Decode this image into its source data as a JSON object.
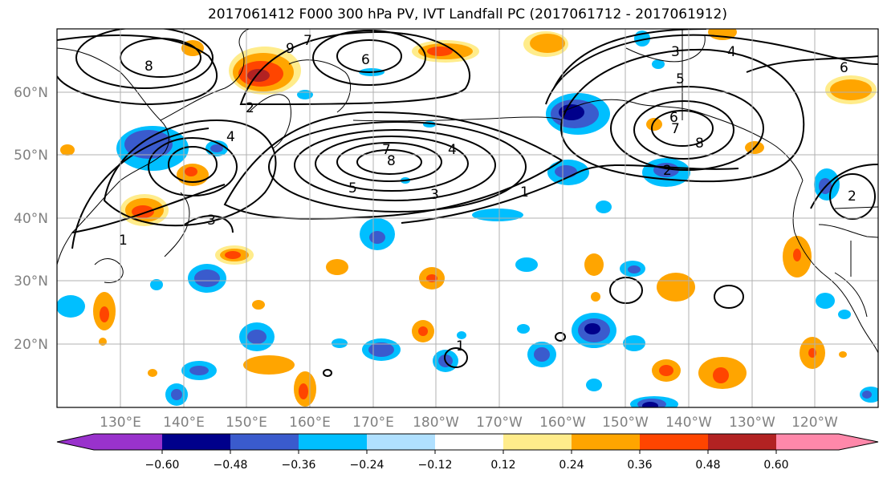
{
  "title": "2017061412 F000 300 hPa PV, IVT Landfall PC (2017061712 - 2017061912)",
  "map": {
    "lat_labels": [
      "60°N",
      "50°N",
      "40°N",
      "30°N",
      "20°N"
    ],
    "lon_labels": [
      "130°E",
      "140°E",
      "150°E",
      "160°E",
      "170°E",
      "180°W",
      "170°W",
      "160°W",
      "150°W",
      "140°W",
      "130°W",
      "120°W"
    ],
    "contour_labels": [
      "1",
      "1",
      "1",
      "2",
      "2",
      "2",
      "3",
      "3",
      "3",
      "4",
      "4",
      "4",
      "5",
      "5",
      "6",
      "6",
      "6",
      "7",
      "7",
      "7",
      "8",
      "8",
      "8",
      "9"
    ]
  },
  "colorbar": {
    "ticks": [
      "−0.60",
      "−0.48",
      "−0.36",
      "−0.24",
      "−0.12",
      "0.12",
      "0.24",
      "0.36",
      "0.48",
      "0.60"
    ],
    "colors": [
      "#9932cc",
      "#00008b",
      "#3a5bcd",
      "#00bfff",
      "#b0e0ff",
      "#ffffff",
      "#ffec8b",
      "#ffa500",
      "#ff4500",
      "#b22222",
      "#ff88aa"
    ]
  },
  "colors": {
    "grid": "#b0b0b0",
    "coast": "#000000",
    "neg_strong": "#00008b",
    "neg_mid": "#3a5bcd",
    "neg_light": "#00bfff",
    "neg_pale": "#b0e0ff",
    "pos_pale": "#ffec8b",
    "pos_light": "#ffa500",
    "pos_mid": "#ff4500",
    "pos_strong": "#b22222"
  }
}
